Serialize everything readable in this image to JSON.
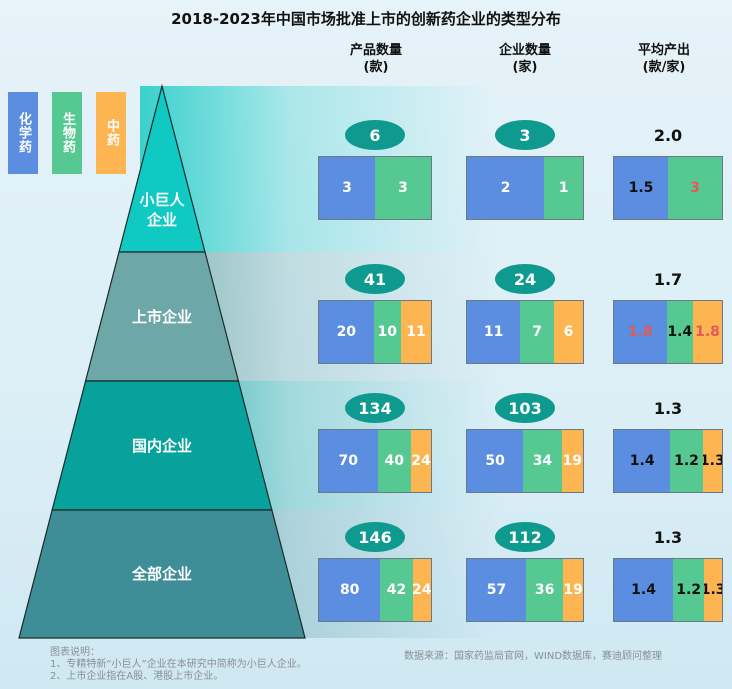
{
  "title": "2018-2023年中国市场批准上市的创新药企业的类型分布",
  "column_headers": [
    {
      "line1": "产品数量",
      "line2": "(款)"
    },
    {
      "line1": "企业数量",
      "line2": "(家)"
    },
    {
      "line1": "平均产出",
      "line2": "(款/家)"
    }
  ],
  "legend": [
    {
      "label": "化学药",
      "color": "#5b8ee0"
    },
    {
      "label": "生物药",
      "color": "#56c891"
    },
    {
      "label": "中药",
      "color": "#fdb552"
    }
  ],
  "chart_data": {
    "type": "table",
    "categories": [
      "小巨人企业",
      "上市企业",
      "国内企业",
      "全部企业"
    ],
    "series_names": [
      "化学药",
      "生物药",
      "中药"
    ],
    "rows": [
      {
        "tier": "小巨人企业",
        "products_total": "6",
        "products": [
          3,
          3,
          0
        ],
        "companies_total": "3",
        "companies": [
          2,
          1,
          0
        ],
        "avg_total": "2.0",
        "avg": [
          "1.5",
          "3",
          ""
        ]
      },
      {
        "tier": "上市企业",
        "products_total": "41",
        "products": [
          20,
          10,
          11
        ],
        "companies_total": "24",
        "companies": [
          11,
          7,
          6
        ],
        "avg_total": "1.7",
        "avg": [
          "1.8",
          "1.4",
          "1.8"
        ]
      },
      {
        "tier": "国内企业",
        "products_total": "134",
        "products": [
          70,
          40,
          24
        ],
        "companies_total": "103",
        "companies": [
          50,
          34,
          19
        ],
        "avg_total": "1.3",
        "avg": [
          "1.4",
          "1.2",
          "1.3"
        ]
      },
      {
        "tier": "全部企业",
        "products_total": "146",
        "products": [
          80,
          42,
          24
        ],
        "companies_total": "112",
        "companies": [
          57,
          36,
          19
        ],
        "avg_total": "1.3",
        "avg": [
          "1.4",
          "1.2",
          "1.3"
        ]
      }
    ]
  },
  "pyramid": {
    "tier_labels": [
      "小巨人\n企业",
      "上市企业",
      "国内企业",
      "全部企业"
    ],
    "colors": [
      "#0fc9c2",
      "#6ea7a7",
      "#06a29b",
      "#3f8e97"
    ]
  },
  "notes": [
    "图表说明：",
    "1、专精特新“小巨人”企业在本研究中简称为小巨人企业。",
    "2、上市企业指在A股、港股上市企业。"
  ],
  "source": "数据来源：国家药监局官网，WIND数据库，赛迪顾问整理"
}
